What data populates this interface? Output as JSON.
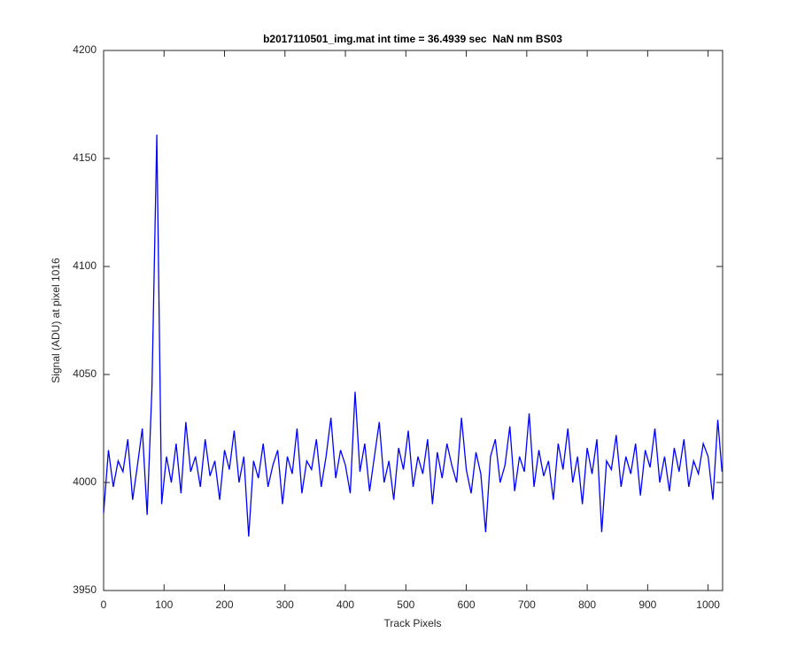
{
  "chart_data": {
    "type": "line",
    "title": "b2017110501_img.mat int time = 36.4939 sec  NaN nm BS03",
    "x_label": "Track Pixels",
    "y_label": "Signal (ADU) at pixel 1016",
    "x": [
      0,
      8,
      16,
      24,
      32,
      40,
      48,
      56,
      64,
      72,
      80,
      88,
      96,
      104,
      112,
      120,
      128,
      136,
      144,
      152,
      160,
      168,
      176,
      184,
      192,
      200,
      208,
      216,
      224,
      232,
      240,
      248,
      256,
      264,
      272,
      280,
      288,
      296,
      304,
      312,
      320,
      328,
      336,
      344,
      352,
      360,
      368,
      376,
      384,
      392,
      400,
      408,
      416,
      424,
      432,
      440,
      448,
      456,
      464,
      472,
      480,
      488,
      496,
      504,
      512,
      520,
      528,
      536,
      544,
      552,
      560,
      568,
      576,
      584,
      592,
      600,
      608,
      616,
      624,
      632,
      640,
      648,
      656,
      664,
      672,
      680,
      688,
      696,
      704,
      712,
      720,
      728,
      736,
      744,
      752,
      760,
      768,
      776,
      784,
      792,
      800,
      808,
      816,
      824,
      832,
      840,
      848,
      856,
      864,
      872,
      880,
      888,
      896,
      904,
      912,
      920,
      928,
      936,
      944,
      952,
      960,
      968,
      976,
      984,
      992,
      1000,
      1008,
      1016,
      1023
    ],
    "series": [
      {
        "name": "signal",
        "color": "#0000ff",
        "values": [
          3986,
          4015,
          3998,
          4010,
          4005,
          4020,
          3992,
          4008,
          4025,
          3985,
          4044,
          4161,
          3990,
          4012,
          4000,
          4018,
          3995,
          4028,
          4005,
          4012,
          3998,
          4020,
          4003,
          4010,
          3992,
          4015,
          4006,
          4024,
          4000,
          4012,
          3975,
          4010,
          4002,
          4018,
          3998,
          4008,
          4015,
          3990,
          4012,
          4004,
          4025,
          3995,
          4010,
          4006,
          4020,
          3998,
          4012,
          4030,
          4002,
          4015,
          4008,
          3995,
          4042,
          4005,
          4018,
          3996,
          4012,
          4028,
          4000,
          4010,
          3992,
          4016,
          4006,
          4024,
          3998,
          4012,
          4004,
          4020,
          3990,
          4014,
          4002,
          4018,
          4008,
          4000,
          4030,
          4006,
          3995,
          4014,
          4004,
          3977,
          4012,
          4020,
          4000,
          4008,
          4026,
          3996,
          4012,
          4005,
          4032,
          3998,
          4015,
          4003,
          4010,
          3992,
          4018,
          4006,
          4025,
          4000,
          4012,
          3990,
          4016,
          4004,
          4020,
          3977,
          4010,
          4006,
          4022,
          3998,
          4012,
          4004,
          4018,
          3994,
          4015,
          4007,
          4025,
          4000,
          4012,
          3996,
          4016,
          4005,
          4020,
          3998,
          4010,
          4004,
          4018,
          4012,
          3992,
          4029,
          4005
        ]
      }
    ],
    "xlim": [
      0,
      1024
    ],
    "xticks": [
      0,
      100,
      200,
      300,
      400,
      500,
      600,
      700,
      800,
      900,
      1000
    ],
    "ylim": [
      3950,
      4200
    ],
    "yticks": [
      3950,
      4000,
      4050,
      4100,
      4150,
      4200
    ],
    "grid": false
  }
}
